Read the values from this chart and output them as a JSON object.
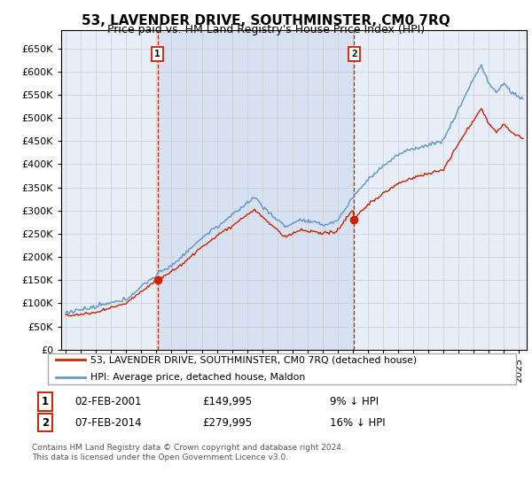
{
  "title": "53, LAVENDER DRIVE, SOUTHMINSTER, CM0 7RQ",
  "subtitle": "Price paid vs. HM Land Registry's House Price Index (HPI)",
  "yticks": [
    0,
    50000,
    100000,
    150000,
    200000,
    250000,
    300000,
    350000,
    400000,
    450000,
    500000,
    550000,
    600000,
    650000
  ],
  "ylim": [
    0,
    690000
  ],
  "xlim_start": 1994.7,
  "xlim_end": 2025.5,
  "xticks": [
    1995,
    1996,
    1997,
    1998,
    1999,
    2000,
    2001,
    2002,
    2003,
    2004,
    2005,
    2006,
    2007,
    2008,
    2009,
    2010,
    2011,
    2012,
    2013,
    2014,
    2015,
    2016,
    2017,
    2018,
    2019,
    2020,
    2021,
    2022,
    2023,
    2024,
    2025
  ],
  "grid_color": "#cccccc",
  "background_color": "#e8eef8",
  "hpi_color": "#6699cc",
  "price_color": "#cc2200",
  "vline_color": "#cc2200",
  "fill_color": "#ccd8ee",
  "sale1_x": 2001.08,
  "sale1_y": 149995,
  "sale2_x": 2014.08,
  "sale2_y": 279995,
  "legend_label_price": "53, LAVENDER DRIVE, SOUTHMINSTER, CM0 7RQ (detached house)",
  "legend_label_hpi": "HPI: Average price, detached house, Maldon",
  "table_row1": [
    "1",
    "02-FEB-2001",
    "£149,995",
    "9% ↓ HPI"
  ],
  "table_row2": [
    "2",
    "07-FEB-2014",
    "£279,995",
    "16% ↓ HPI"
  ],
  "footnote": "Contains HM Land Registry data © Crown copyright and database right 2024.\nThis data is licensed under the Open Government Licence v3.0.",
  "title_fontsize": 11,
  "subtitle_fontsize": 9,
  "tick_fontsize": 8
}
